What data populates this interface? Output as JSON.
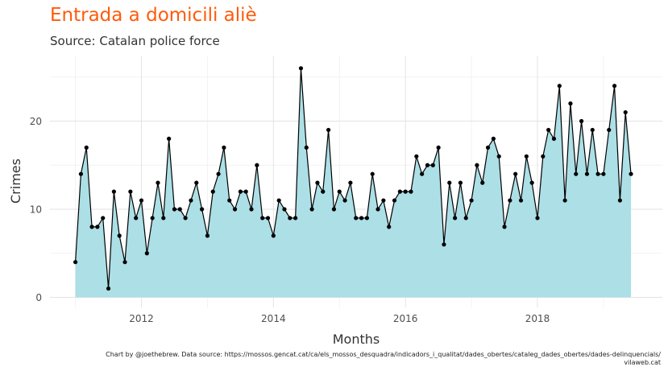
{
  "chart_data": {
    "type": "area",
    "title": "Entrada a domicili aliè",
    "subtitle": "Source: Catalan police force",
    "xlabel": "Months",
    "ylabel": "Crimes",
    "caption_line1": "Chart by @joethebrew. Data source: https://mossos.gencat.cat/ca/els_mossos_desquadra/indicadors_i_qualitat/dades_obertes/cataleg_dades_obertes/dades-delinquencials/",
    "caption_line2": "vilaweb.cat",
    "x_ticks": [
      "2012",
      "2014",
      "2016",
      "2018"
    ],
    "y_ticks": [
      "0",
      "10",
      "20"
    ],
    "ylim": [
      0,
      26
    ],
    "x_start": "2011-01",
    "x_end": "2019-06",
    "grid": true,
    "fill_color": "#acdfe6",
    "line_color": "#000000",
    "values": [
      4,
      14,
      17,
      8,
      8,
      9,
      1,
      12,
      7,
      4,
      12,
      9,
      11,
      5,
      9,
      13,
      9,
      18,
      10,
      10,
      9,
      11,
      13,
      10,
      7,
      12,
      14,
      17,
      11,
      10,
      12,
      12,
      10,
      15,
      9,
      9,
      7,
      11,
      10,
      9,
      9,
      26,
      17,
      10,
      13,
      12,
      19,
      10,
      12,
      11,
      13,
      9,
      9,
      9,
      14,
      10,
      11,
      8,
      11,
      12,
      12,
      12,
      16,
      14,
      15,
      15,
      17,
      6,
      13,
      9,
      13,
      9,
      11,
      15,
      13,
      17,
      18,
      16,
      8,
      11,
      14,
      11,
      16,
      13,
      9,
      16,
      19,
      18,
      24,
      11,
      22,
      14,
      20,
      14,
      19,
      14,
      14,
      19,
      24,
      11,
      21,
      14
    ]
  }
}
